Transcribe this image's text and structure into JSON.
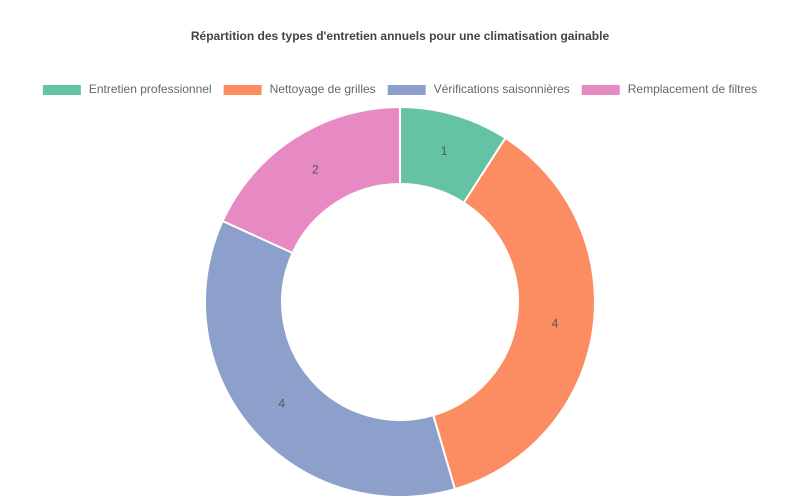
{
  "chart_data": {
    "type": "donut",
    "title": "Répartition des types d'entretien annuels pour une climatisation gainable",
    "categories": [
      "Entretien professionnel",
      "Nettoyage de grilles",
      "Vérifications saisonnières",
      "Remplacement de filtres"
    ],
    "values": [
      1,
      4,
      4,
      2
    ],
    "colors": [
      "#66c2a5",
      "#fc8d62",
      "#8da0cb",
      "#e78ac3"
    ],
    "legend": "top"
  }
}
